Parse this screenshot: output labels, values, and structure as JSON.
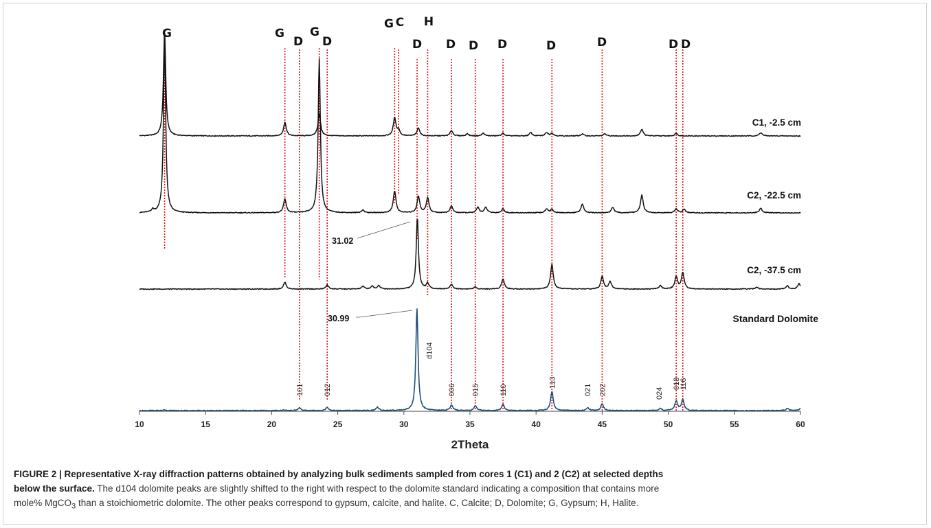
{
  "chart_data": {
    "type": "line",
    "xlabel": "2Theta",
    "xlim": [
      10,
      60
    ],
    "x_ticks": [
      "10",
      "15",
      "20",
      "25",
      "30",
      "35",
      "40",
      "45",
      "50",
      "55",
      "60"
    ],
    "grid": false,
    "phase_lines": [
      {
        "label": "G",
        "x": 11.9
      },
      {
        "label": "G",
        "x": 21.0
      },
      {
        "label": "D",
        "x": 22.1
      },
      {
        "label": "G",
        "x": 23.6
      },
      {
        "label": "D",
        "x": 24.2
      },
      {
        "label": "G",
        "x": 29.3
      },
      {
        "label": "C",
        "x": 29.6
      },
      {
        "label": "D",
        "x": 31.0
      },
      {
        "label": "H",
        "x": 31.8
      },
      {
        "label": "D",
        "x": 33.6
      },
      {
        "label": "D",
        "x": 35.4
      },
      {
        "label": "D",
        "x": 37.5
      },
      {
        "label": "D",
        "x": 41.2
      },
      {
        "label": "D",
        "x": 45.0
      },
      {
        "label": "D",
        "x": 50.6
      },
      {
        "label": "D",
        "x": 51.1
      }
    ],
    "series": [
      {
        "name": "C1, -2.5 cm",
        "color": "#111111",
        "peaks": [
          [
            11.9,
            155
          ],
          [
            21.0,
            20
          ],
          [
            23.6,
            32
          ],
          [
            29.3,
            26
          ],
          [
            29.6,
            8
          ],
          [
            31.1,
            12
          ],
          [
            33.6,
            8
          ],
          [
            34.8,
            3
          ],
          [
            36.0,
            4
          ],
          [
            37.5,
            4
          ],
          [
            39.6,
            5
          ],
          [
            40.8,
            5
          ],
          [
            41.2,
            4
          ],
          [
            43.5,
            3
          ],
          [
            45.2,
            3
          ],
          [
            48.0,
            10
          ],
          [
            50.6,
            4
          ],
          [
            57.0,
            5
          ]
        ]
      },
      {
        "name": "C2, -22.5 cm",
        "color": "#111111",
        "peaks": [
          [
            11.0,
            4
          ],
          [
            11.9,
            250
          ],
          [
            21.0,
            20
          ],
          [
            23.6,
            225
          ],
          [
            26.9,
            4
          ],
          [
            29.3,
            32
          ],
          [
            31.1,
            24
          ],
          [
            31.8,
            22
          ],
          [
            33.6,
            10
          ],
          [
            35.6,
            8
          ],
          [
            36.2,
            8
          ],
          [
            37.5,
            6
          ],
          [
            40.8,
            6
          ],
          [
            41.2,
            5
          ],
          [
            43.5,
            13
          ],
          [
            45.8,
            8
          ],
          [
            48.0,
            26
          ],
          [
            50.6,
            6
          ],
          [
            51.2,
            5
          ],
          [
            57.0,
            7
          ]
        ]
      },
      {
        "name": "C2, -37.5 cm",
        "color": "#111111",
        "peaks": [
          [
            21.0,
            10
          ],
          [
            24.2,
            6
          ],
          [
            26.9,
            4
          ],
          [
            27.6,
            4
          ],
          [
            28.1,
            5
          ],
          [
            31.02,
            105
          ],
          [
            31.8,
            8
          ],
          [
            33.6,
            7
          ],
          [
            35.4,
            3
          ],
          [
            37.5,
            15
          ],
          [
            41.2,
            36
          ],
          [
            45.0,
            19
          ],
          [
            45.6,
            11
          ],
          [
            49.4,
            5
          ],
          [
            50.6,
            18
          ],
          [
            51.1,
            24
          ],
          [
            56.7,
            3
          ],
          [
            59.0,
            5
          ],
          [
            59.9,
            8
          ]
        ]
      },
      {
        "name": "Standard Dolomite",
        "color": "#1f4e79",
        "peaks": [
          [
            11.9,
            1
          ],
          [
            20.9,
            1
          ],
          [
            22.1,
            4
          ],
          [
            24.2,
            5
          ],
          [
            28.0,
            5
          ],
          [
            30.99,
            150
          ],
          [
            33.6,
            8
          ],
          [
            35.4,
            7
          ],
          [
            37.5,
            9
          ],
          [
            41.2,
            28
          ],
          [
            43.9,
            4
          ],
          [
            45.0,
            10
          ],
          [
            49.4,
            3
          ],
          [
            50.6,
            14
          ],
          [
            51.1,
            16
          ],
          [
            59.0,
            3
          ],
          [
            60.0,
            3
          ]
        ]
      }
    ],
    "annotations": [
      {
        "text": "31.02",
        "series": "C2, -37.5 cm",
        "x": 31.02
      },
      {
        "text": "30.99",
        "series": "Standard Dolomite",
        "x": 30.99
      }
    ],
    "hkl_labels": [
      {
        "text": "101",
        "x": 22.1
      },
      {
        "text": "012",
        "x": 24.2
      },
      {
        "text": "d104",
        "x": 31.9
      },
      {
        "text": "006",
        "x": 33.6
      },
      {
        "text": "015",
        "x": 35.4
      },
      {
        "text": "110",
        "x": 37.5
      },
      {
        "text": "113",
        "x": 41.2
      },
      {
        "text": "021",
        "x": 43.9
      },
      {
        "text": "202",
        "x": 45.0
      },
      {
        "text": "024",
        "x": 49.3
      },
      {
        "text": "018",
        "x": 50.6
      },
      {
        "text": "116",
        "x": 51.1
      }
    ]
  },
  "caption": {
    "line1_bold": "FIGURE 2 | Representative X-ray diffraction patterns obtained by analyzing bulk sediments sampled from cores 1 (C1) and 2 (C2) at selected depths",
    "line2_bold": "below the surface.",
    "line2_rest": " The d104 dolomite peaks are slightly shifted to the right with respect to the dolomite standard indicating a composition that contains more",
    "line3_before": "mole% MgCO",
    "line3_sub": "3",
    "line3_after": " than a stoichiometric dolomite. The other peaks correspond to gypsum, calcite, and halite. C, Calcite; D, Dolomite; G, Gypsum; H, Halite."
  }
}
